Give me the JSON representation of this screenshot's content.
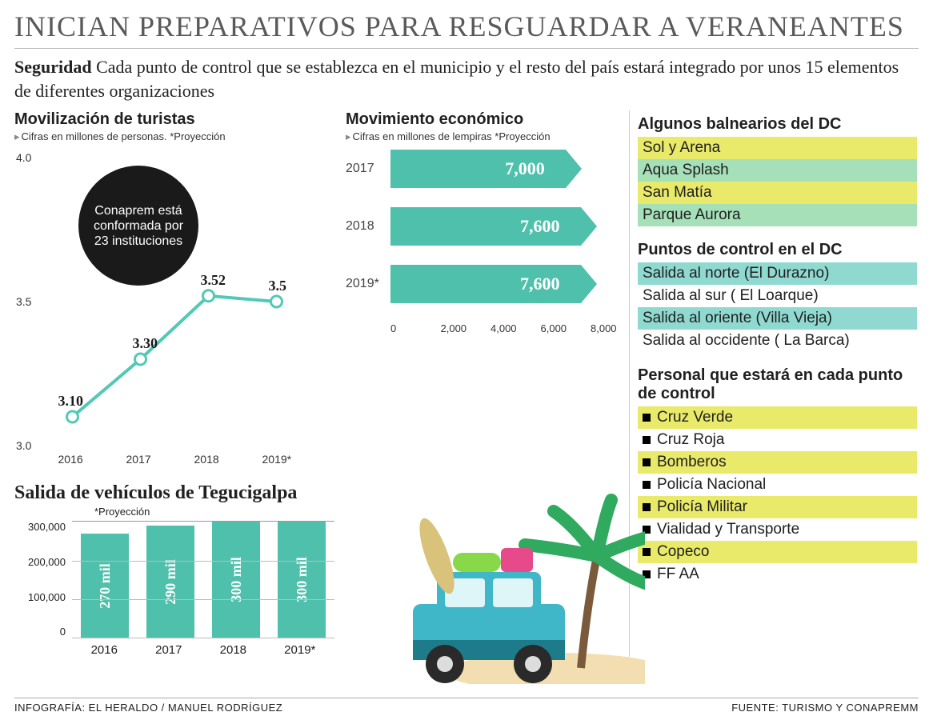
{
  "headline": "INICIAN PREPARATIVOS PARA RESGUARDAR A VERANEANTES",
  "lede_bold": "Seguridad",
  "lede_rest": " Cada punto de control que se establezca en el municipio y el resto del país estará integrado por unos 15 elementos de diferentes organizaciones",
  "tourists": {
    "title": "Movilización de turistas",
    "sub": "Cifras en millones de personas. *Proyección",
    "callout": "Conaprem está conformada por 23 instituciones",
    "callout_bg": "#1a1a1a",
    "line_color": "#51c9b5",
    "marker_fill": "#ffffff",
    "marker_stroke": "#51c9b5",
    "ylim": [
      3.0,
      4.0
    ],
    "yticks": [
      "4.0",
      "3.5",
      "3.0"
    ],
    "points": [
      {
        "year": "2016",
        "value": 3.1,
        "label": "3.10"
      },
      {
        "year": "2017",
        "value": 3.3,
        "label": "3.30"
      },
      {
        "year": "2018",
        "value": 3.52,
        "label": "3.52"
      },
      {
        "year": "2019*",
        "value": 3.5,
        "label": "3.5"
      }
    ]
  },
  "economic": {
    "title": "Movimiento económico",
    "sub": "Cifras en millones de lempiras *Proyección",
    "bar_color": "#4fc0ac",
    "max": 8000,
    "xticks": [
      "0",
      "2,000",
      "4,000",
      "6,000",
      "8,000"
    ],
    "rows": [
      {
        "year": "2017",
        "value": 7000,
        "label": "7,000"
      },
      {
        "year": "2018",
        "value": 7600,
        "label": "7,600"
      },
      {
        "year": "2019*",
        "value": 7600,
        "label": "7,600"
      }
    ]
  },
  "balnearios": {
    "title": "Algunos balnearios del DC",
    "stripe_a": "#e9e96a",
    "stripe_b": "#a5e0b8",
    "items": [
      "Sol y Arena",
      "Aqua Splash",
      "San Matía",
      "Parque Aurora"
    ]
  },
  "puntos": {
    "title": "Puntos de control en el DC",
    "stripe_a": "#8fd9d0",
    "stripe_b": "#ffffff",
    "items": [
      "Salida al norte (El Durazno)",
      "Salida al sur  ( El Loarque)",
      "Salida al oriente (Villa Vieja)",
      "Salida al occidente ( La Barca)"
    ]
  },
  "personal": {
    "title": "Personal que estará en cada punto de control",
    "stripe_a": "#e9e96a",
    "stripe_b": "#ffffff",
    "items": [
      "Cruz Verde",
      "Cruz Roja",
      "Bomberos",
      "Policía Nacional",
      "Policía Militar",
      "Vialidad y Transporte",
      "Copeco",
      "FF AA"
    ]
  },
  "vehicles": {
    "title": "Salida de vehículos de Tegucigalpa",
    "sub": "*Proyección",
    "bar_color": "#4fc0ac",
    "ylim": [
      0,
      300000
    ],
    "yticks": [
      "300,000",
      "200,000",
      "100,000",
      "0"
    ],
    "bars": [
      {
        "year": "2016",
        "value": 270000,
        "label": "270 mil"
      },
      {
        "year": "2017",
        "value": 290000,
        "label": "290 mil"
      },
      {
        "year": "2018",
        "value": 300000,
        "label": "300 mil"
      },
      {
        "year": "2019*",
        "value": 300000,
        "label": "300 mil"
      }
    ]
  },
  "illustration": {
    "palm_trunk": "#7a5a3a",
    "palm_leaf": "#2faa5f",
    "sand": "#f2deb0",
    "car_body": "#3fb7c9",
    "car_dark": "#1e7c8a",
    "tire": "#2a2a2a",
    "luggage1": "#88d84a",
    "luggage2": "#e74a8a",
    "surfboard": "#d9c27a"
  },
  "footer_left": "INFOGRAFÍA: EL HERALDO / MANUEL RODRÍGUEZ",
  "footer_right": "FUENTE: TURISMO Y CONAPREMM"
}
